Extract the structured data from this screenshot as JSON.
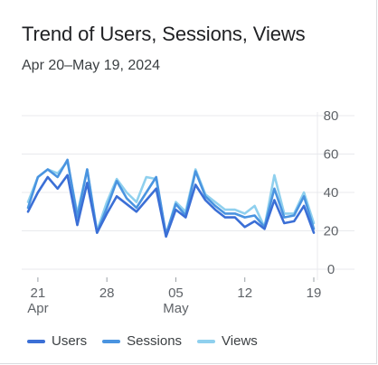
{
  "card": {
    "title": "Trend of Users, Sessions, Views",
    "subtitle": "Apr 20–May 19, 2024"
  },
  "chart_data": {
    "type": "line",
    "title": "Trend of Users, Sessions, Views",
    "subtitle": "Apr 20–May 19, 2024",
    "x": [
      "2024-04-20",
      "2024-04-21",
      "2024-04-22",
      "2024-04-23",
      "2024-04-24",
      "2024-04-25",
      "2024-04-26",
      "2024-04-27",
      "2024-04-28",
      "2024-04-29",
      "2024-04-30",
      "2024-05-01",
      "2024-05-02",
      "2024-05-03",
      "2024-05-04",
      "2024-05-05",
      "2024-05-06",
      "2024-05-07",
      "2024-05-08",
      "2024-05-09",
      "2024-05-10",
      "2024-05-11",
      "2024-05-12",
      "2024-05-13",
      "2024-05-14",
      "2024-05-15",
      "2024-05-16",
      "2024-05-17",
      "2024-05-18",
      "2024-05-19"
    ],
    "x_ticks": [
      {
        "date": "2024-04-21",
        "label": "21",
        "sublabel": "Apr"
      },
      {
        "date": "2024-04-28",
        "label": "28",
        "sublabel": ""
      },
      {
        "date": "2024-05-05",
        "label": "05",
        "sublabel": "May"
      },
      {
        "date": "2024-05-12",
        "label": "12",
        "sublabel": ""
      },
      {
        "date": "2024-05-19",
        "label": "19",
        "sublabel": ""
      }
    ],
    "y_ticks": [
      0,
      20,
      40,
      60,
      80
    ],
    "ylim": [
      0,
      80
    ],
    "grid": true,
    "legend_position": "bottom",
    "series": [
      {
        "name": "Users",
        "color": "#3b6fd6",
        "values": [
          30,
          40,
          48,
          42,
          49,
          23,
          45,
          19,
          29,
          38,
          34,
          30,
          36,
          42,
          17,
          31,
          27,
          44,
          36,
          31,
          27,
          27,
          22,
          25,
          21,
          36,
          24,
          25,
          33,
          19
        ]
      },
      {
        "name": "Sessions",
        "color": "#4a94e0",
        "values": [
          32,
          48,
          52,
          48,
          57,
          27,
          52,
          19,
          32,
          46,
          37,
          32,
          40,
          48,
          18,
          34,
          28,
          51,
          38,
          33,
          29,
          29,
          27,
          28,
          22,
          42,
          27,
          28,
          38,
          21
        ]
      },
      {
        "name": "Views",
        "color": "#8fd0ee",
        "values": [
          35,
          48,
          52,
          50,
          56,
          29,
          52,
          20,
          35,
          47,
          40,
          35,
          48,
          47,
          18,
          35,
          30,
          52,
          39,
          35,
          31,
          31,
          29,
          33,
          22,
          49,
          29,
          29,
          40,
          24
        ]
      }
    ]
  }
}
